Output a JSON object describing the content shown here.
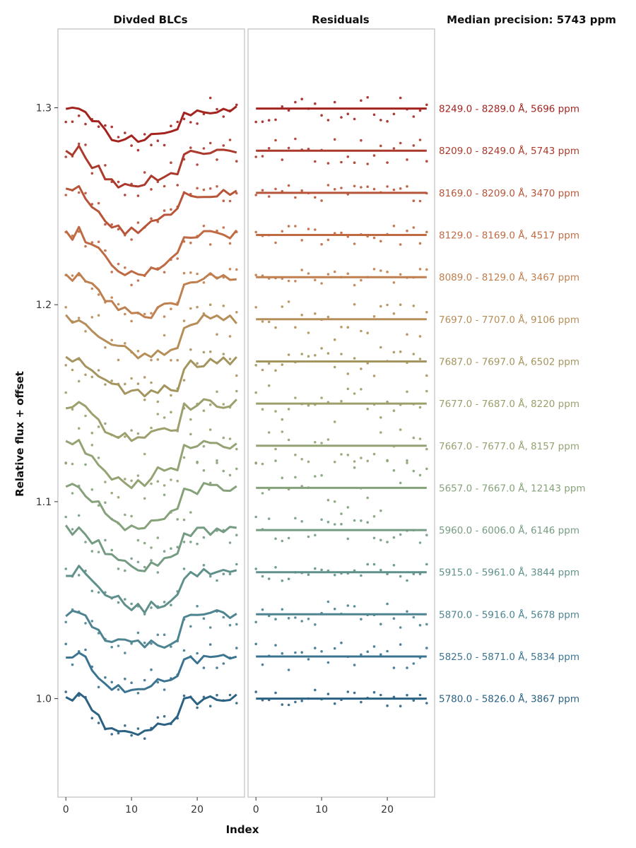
{
  "chart_data": {
    "type": "line",
    "panel_titles": [
      "Divded BLCs",
      "Residuals"
    ],
    "side_title": "Median precision: 5743 ppm",
    "xlabel": "Index",
    "ylabel": "Relative flux + offset",
    "xlim": [
      -1.2,
      27.2
    ],
    "ylim": [
      0.95,
      1.34
    ],
    "x_ticks": [
      0,
      10,
      20
    ],
    "y_ticks": [
      1.0,
      1.1,
      1.2,
      1.3
    ],
    "y_tick_labels": [
      "1.0",
      "1.1",
      "1.2",
      "1.3"
    ],
    "x": [
      0,
      1,
      2,
      3,
      4,
      5,
      6,
      7,
      8,
      9,
      10,
      11,
      12,
      13,
      14,
      15,
      16,
      17,
      18,
      19,
      20,
      21,
      22,
      23,
      24,
      25,
      26
    ],
    "template_dip": [
      0,
      0,
      0.002,
      -0.002,
      -0.006,
      -0.008,
      -0.012,
      -0.015,
      -0.016,
      -0.017,
      -0.018,
      -0.018,
      -0.019,
      -0.016,
      -0.015,
      -0.014,
      -0.013,
      -0.012,
      -0.002,
      -0.001,
      -0.001,
      0,
      0,
      0,
      0,
      0,
      0
    ],
    "series": [
      {
        "label": "5780.0 - 5826.0 Å, 3867 ppm",
        "color": "#2b6283",
        "offset": 1.0,
        "ppm": 3867
      },
      {
        "label": "5825.0 - 5871.0 Å, 5834 ppm",
        "color": "#3b7490",
        "offset": 1.0214,
        "ppm": 5834
      },
      {
        "label": "5870.0 - 5916.0 Å, 5678 ppm",
        "color": "#4d8490",
        "offset": 1.0428,
        "ppm": 5678
      },
      {
        "label": "5915.0 - 5961.0 Å, 3844 ppm",
        "color": "#5f918a",
        "offset": 1.0642,
        "ppm": 3844
      },
      {
        "label": "5960.0 - 6006.0 Å, 6146 ppm",
        "color": "#759c82",
        "offset": 1.0856,
        "ppm": 6146
      },
      {
        "label": "5657.0 - 7667.0 Å, 12143 ppm",
        "color": "#86a27a",
        "offset": 1.107,
        "ppm": 12143
      },
      {
        "label": "7667.0 - 7677.0 Å, 8157 ppm",
        "color": "#94a374",
        "offset": 1.1284,
        "ppm": 8157
      },
      {
        "label": "7677.0 - 7687.0 Å, 8220 ppm",
        "color": "#9d9f6c",
        "offset": 1.1498,
        "ppm": 8220
      },
      {
        "label": "7687.0 - 7697.0 Å, 6502 ppm",
        "color": "#a4955e",
        "offset": 1.1712,
        "ppm": 6502
      },
      {
        "label": "7697.0 - 7707.0 Å, 9106 ppm",
        "color": "#b58e58",
        "offset": 1.1926,
        "ppm": 9106
      },
      {
        "label": "8089.0 - 8129.0 Å, 3467 ppm",
        "color": "#c07f4e",
        "offset": 1.214,
        "ppm": 3467
      },
      {
        "label": "8129.0 - 8169.0 Å, 4517 ppm",
        "color": "#bf6a43",
        "offset": 1.2354,
        "ppm": 4517
      },
      {
        "label": "8169.0 - 8209.0 Å, 3470 ppm",
        "color": "#b85538",
        "offset": 1.2568,
        "ppm": 3470
      },
      {
        "label": "8209.0 - 8249.0 Å, 5743 ppm",
        "color": "#ab3a2c",
        "offset": 1.2782,
        "ppm": 5743
      },
      {
        "label": "8249.0 - 8289.0 Å, 5696 ppm",
        "color": "#a3241f",
        "offset": 1.2996,
        "ppm": 5696
      }
    ],
    "grid": false,
    "legend": "right-side labels"
  }
}
